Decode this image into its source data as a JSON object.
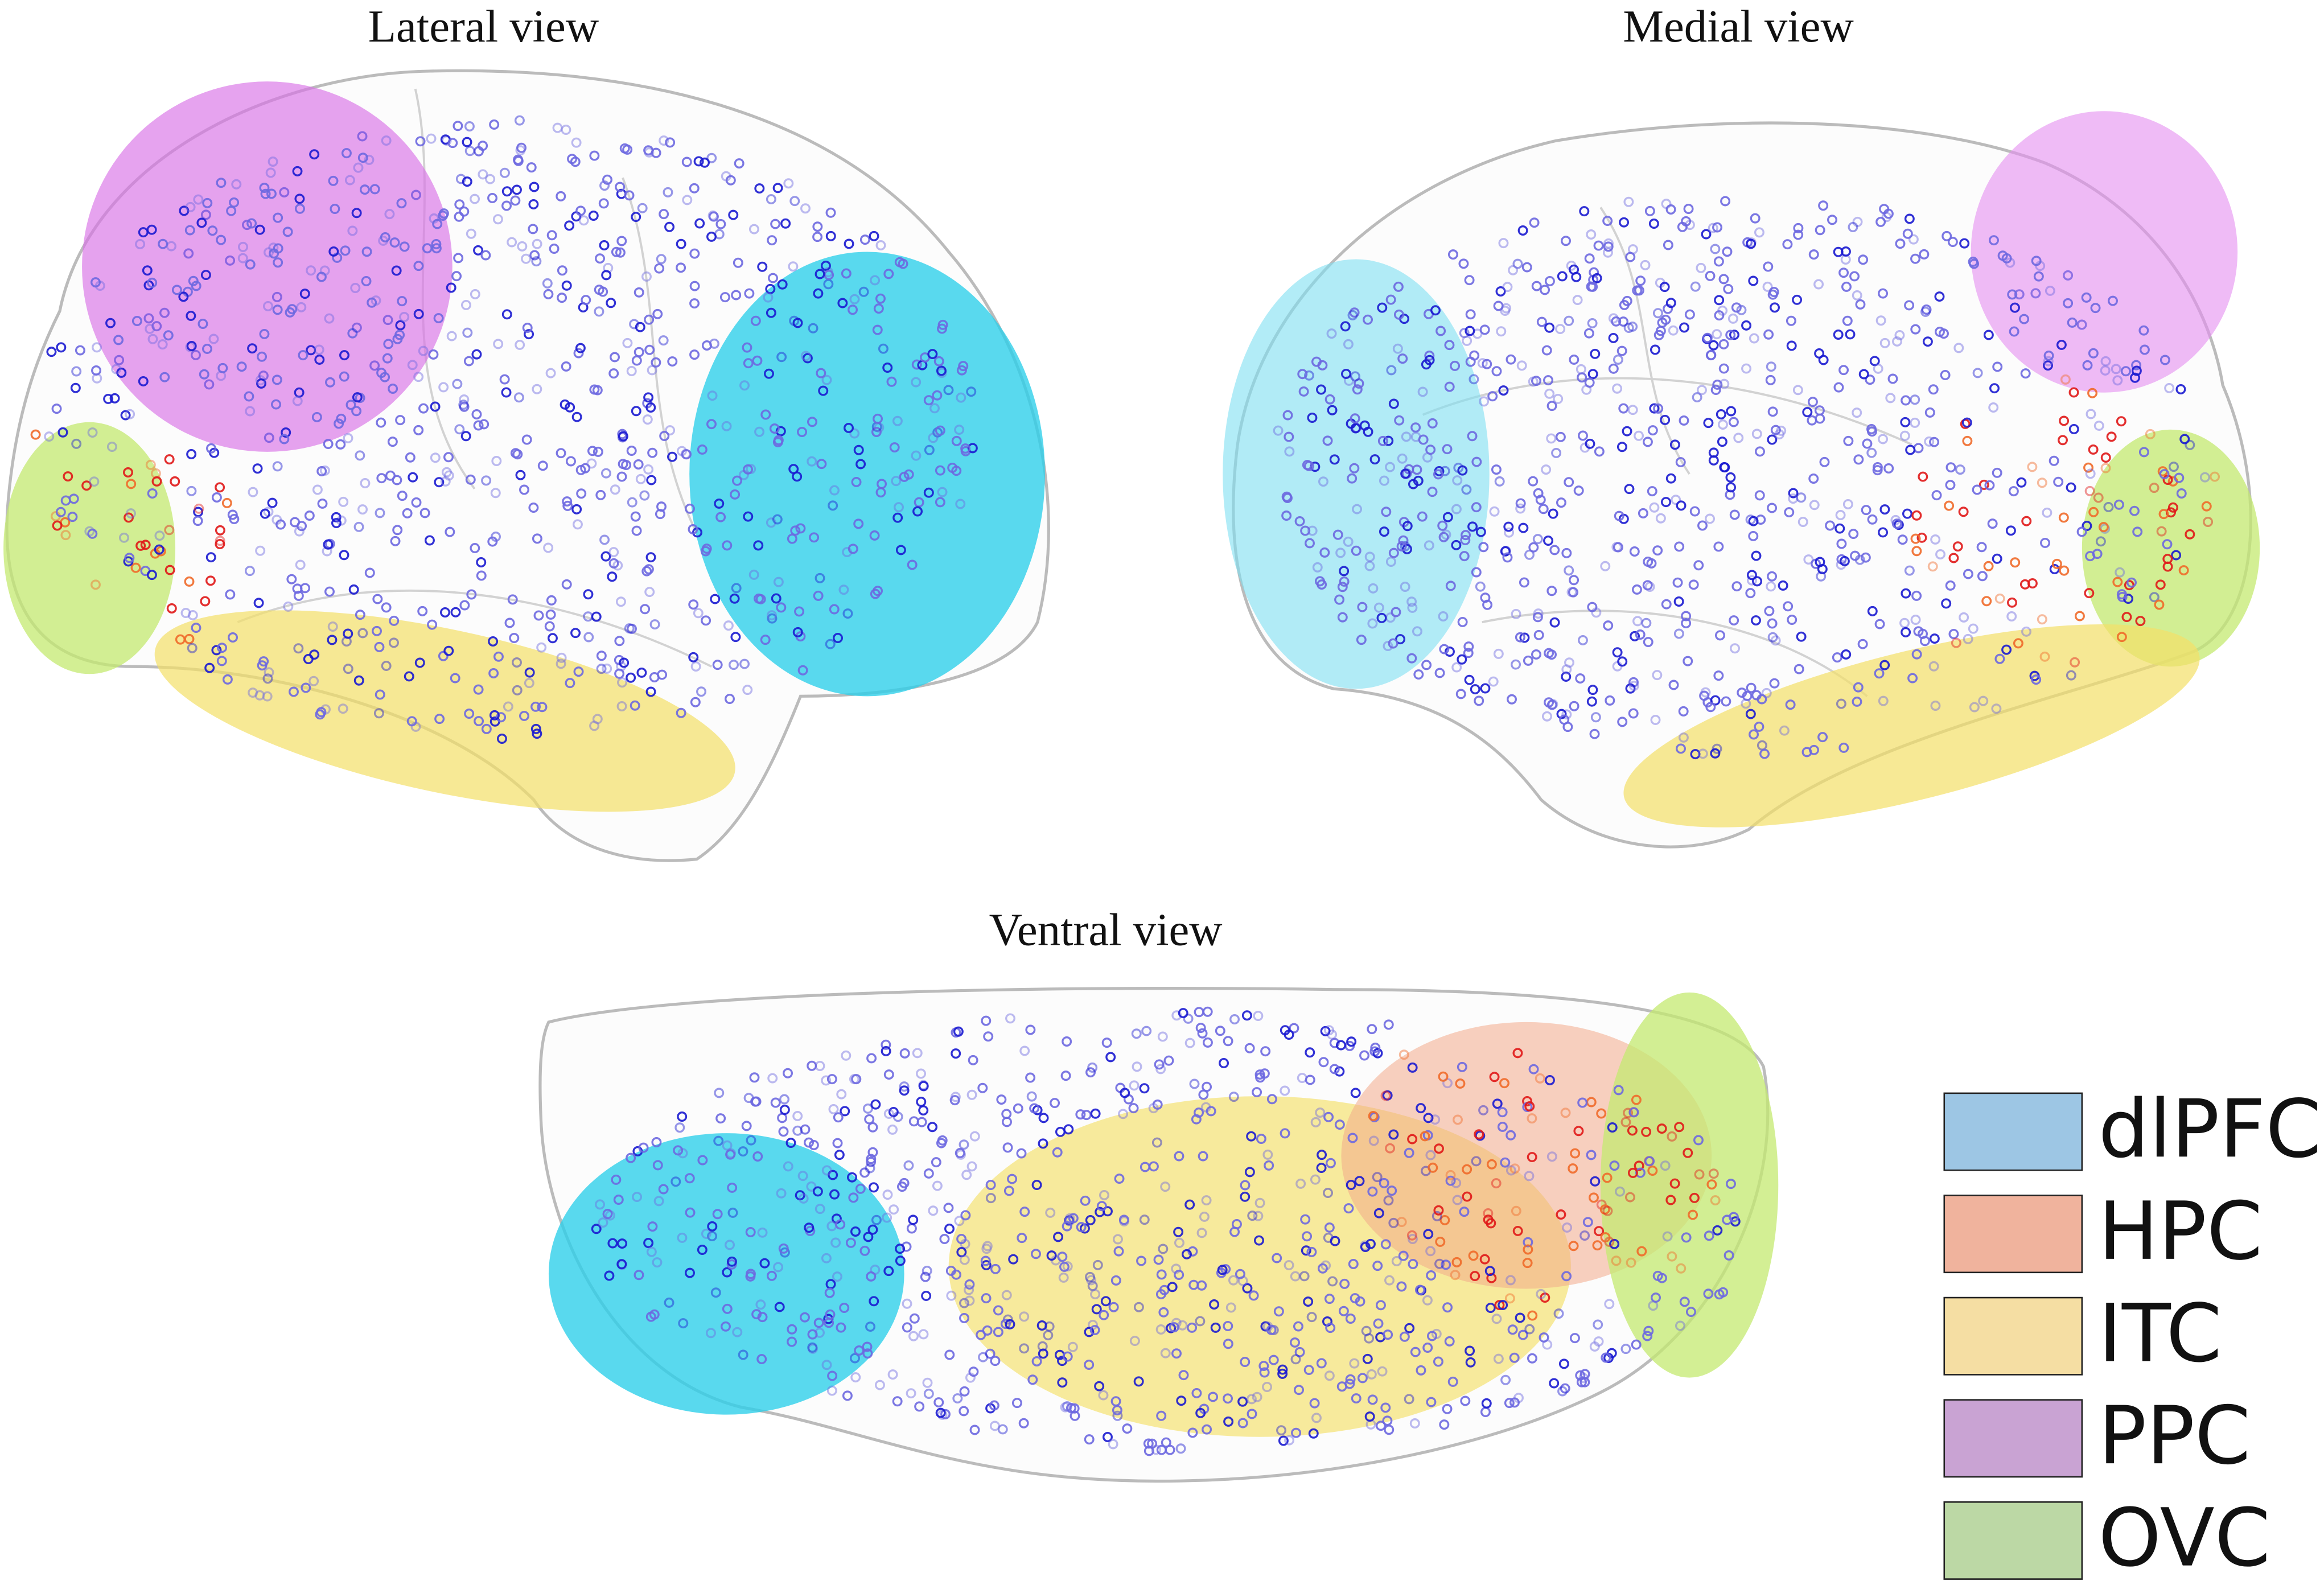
{
  "views": [
    {
      "title": "Lateral view"
    },
    {
      "title": "Medial view"
    },
    {
      "title": "Ventral view"
    }
  ],
  "legend": [
    {
      "label": "dlPFC",
      "color": "#9dc6e4"
    },
    {
      "label": "HPC",
      "color": "#f0b39d"
    },
    {
      "label": "ITC",
      "color": "#f5dea3"
    },
    {
      "label": "PPC",
      "color": "#c9a3d3"
    },
    {
      "label": "OVC",
      "color": "#bcd8a5"
    }
  ]
}
